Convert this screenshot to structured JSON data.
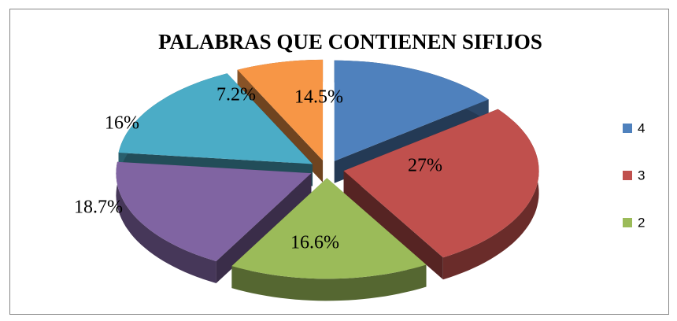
{
  "chart_data": {
    "type": "pie",
    "title": "PALABRAS QUE CONTIENEN SIFIJOS",
    "categories": [
      "4",
      "3",
      "2",
      null,
      null,
      null
    ],
    "values": [
      14.5,
      27,
      16.6,
      18.7,
      16,
      7.2
    ],
    "value_labels": [
      "14.5%",
      "27%",
      "16.6%",
      "18.7%",
      "16%",
      "7.2%"
    ],
    "colors": [
      "#4f81bd",
      "#c0504d",
      "#9bbb59",
      "#8064a2",
      "#4bacc6",
      "#f79646"
    ],
    "legend": "right"
  }
}
